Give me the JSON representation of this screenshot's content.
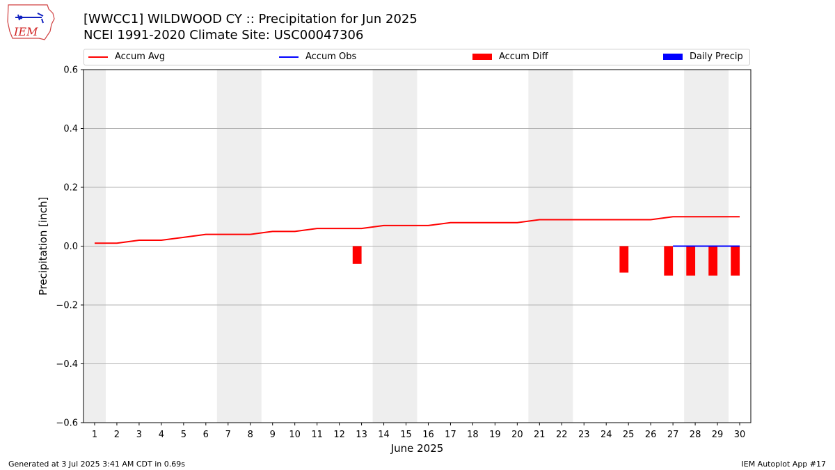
{
  "header": {
    "title_line1": "[WWCC1] WILDWOOD CY :: Precipitation for Jun 2025",
    "title_line2": "NCEI 1991-2020 Climate Site: USC00047306"
  },
  "logo": {
    "text": "IEM"
  },
  "legend": {
    "items": [
      {
        "label": "Accum Avg",
        "color": "#ff0000",
        "kind": "line"
      },
      {
        "label": "Accum Obs",
        "color": "#0000ff",
        "kind": "line"
      },
      {
        "label": "Accum Diff",
        "color": "#ff0000",
        "kind": "bar"
      },
      {
        "label": "Daily Precip",
        "color": "#0000ff",
        "kind": "bar"
      }
    ],
    "placement": "top"
  },
  "footer": {
    "left": "Generated at 3 Jul 2025 3:41 AM CDT in 0.69s",
    "right": "IEM Autoplot App #17"
  },
  "chart_data": {
    "type": "line",
    "xlabel": "June 2025",
    "ylabel": "Precipitation [inch]",
    "x": [
      1,
      2,
      3,
      4,
      5,
      6,
      7,
      8,
      9,
      10,
      11,
      12,
      13,
      14,
      15,
      16,
      17,
      18,
      19,
      20,
      21,
      22,
      23,
      24,
      25,
      26,
      27,
      28,
      29,
      30
    ],
    "xlim": [
      0.5,
      30.5
    ],
    "ylim": [
      -0.6,
      0.6
    ],
    "yticks": [
      -0.6,
      -0.4,
      -0.2,
      0.0,
      0.2,
      0.4,
      0.6
    ],
    "ytick_labels": [
      "−0.6",
      "−0.4",
      "−0.2",
      "0.0",
      "0.2",
      "0.4",
      "0.6"
    ],
    "grid": "y",
    "weekend_shading": [
      [
        0.5,
        1.5
      ],
      [
        6.5,
        8.5
      ],
      [
        13.5,
        15.5
      ],
      [
        20.5,
        22.5
      ],
      [
        27.5,
        29.5
      ]
    ],
    "series": [
      {
        "name": "Accum Avg",
        "type": "line",
        "color": "#ff0000",
        "x": [
          1,
          2,
          3,
          4,
          5,
          6,
          7,
          8,
          9,
          10,
          11,
          12,
          13,
          14,
          15,
          16,
          17,
          18,
          19,
          20,
          21,
          22,
          23,
          24,
          25,
          26,
          27,
          28,
          29,
          30
        ],
        "values": [
          0.01,
          0.01,
          0.02,
          0.02,
          0.03,
          0.04,
          0.04,
          0.04,
          0.05,
          0.05,
          0.06,
          0.06,
          0.06,
          0.07,
          0.07,
          0.07,
          0.08,
          0.08,
          0.08,
          0.08,
          0.09,
          0.09,
          0.09,
          0.09,
          0.09,
          0.09,
          0.1,
          0.1,
          0.1,
          0.1
        ]
      },
      {
        "name": "Accum Obs",
        "type": "line",
        "color": "#0000ff",
        "x": [
          27,
          28,
          29,
          30
        ],
        "values": [
          0.0,
          0.0,
          0.0,
          0.0
        ]
      },
      {
        "name": "Accum Diff",
        "type": "bar",
        "color": "#ff0000",
        "x": [
          13,
          25,
          27,
          28,
          29,
          30
        ],
        "values": [
          -0.06,
          -0.09,
          -0.1,
          -0.1,
          -0.1,
          -0.1
        ]
      },
      {
        "name": "Daily Precip",
        "type": "bar",
        "color": "#0000ff",
        "x": [],
        "values": []
      }
    ]
  }
}
